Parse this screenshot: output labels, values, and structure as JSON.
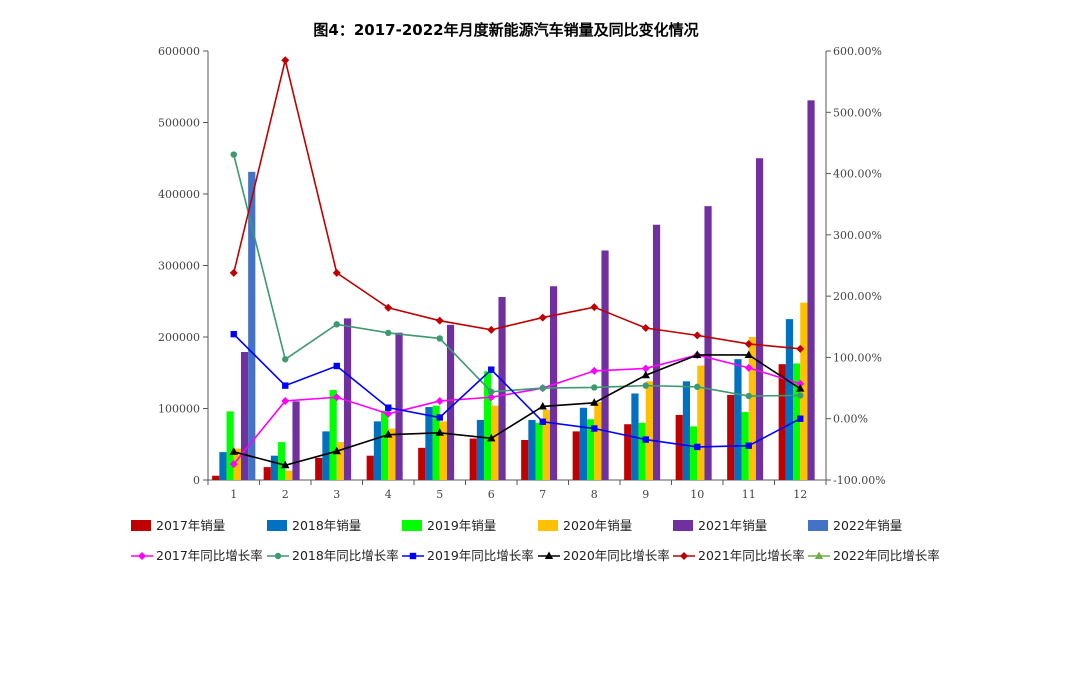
{
  "chart_data": {
    "type": "bar",
    "title": "图4：2017-2022年月度新能源汽车销量及同比变化情况",
    "categories": [
      "1",
      "2",
      "3",
      "4",
      "5",
      "6",
      "7",
      "8",
      "9",
      "10",
      "11",
      "12"
    ],
    "y_left": {
      "min": 0,
      "max": 600000,
      "ticks": [
        0,
        100000,
        200000,
        300000,
        400000,
        500000,
        600000
      ],
      "tick_labels": [
        "0",
        "100000",
        "200000",
        "300000",
        "400000",
        "500000",
        "600000"
      ]
    },
    "y_right": {
      "min": -100,
      "max": 600,
      "ticks": [
        -100,
        0,
        100,
        200,
        300,
        400,
        500,
        600
      ],
      "tick_labels": [
        "-100.00%",
        "0.00%",
        "100.00%",
        "200.00%",
        "300.00%",
        "400.00%",
        "500.00%",
        "600.00%"
      ]
    },
    "bar_series": [
      {
        "name": "2017年销量",
        "color": "#c00000",
        "values": [
          6000,
          18000,
          31000,
          34000,
          45000,
          58000,
          56000,
          68000,
          78000,
          91000,
          119000,
          162000
        ]
      },
      {
        "name": "2018年销量",
        "color": "#0070c0",
        "values": [
          39000,
          34000,
          68000,
          82000,
          102000,
          84000,
          84000,
          101000,
          121000,
          138000,
          169000,
          225000
        ]
      },
      {
        "name": "2019年销量",
        "color": "#00ff00",
        "values": [
          96000,
          53000,
          126000,
          97000,
          104000,
          152000,
          80000,
          85000,
          80000,
          75000,
          95000,
          163000
        ]
      },
      {
        "name": "2020年销量",
        "color": "#ffc000",
        "values": [
          44000,
          13000,
          53000,
          72000,
          82000,
          104000,
          98000,
          109000,
          138000,
          160000,
          200000,
          248000
        ]
      },
      {
        "name": "2021年销量",
        "color": "#7030a0",
        "values": [
          179000,
          110000,
          226000,
          206000,
          217000,
          256000,
          271000,
          321000,
          357000,
          383000,
          450000,
          531000
        ]
      },
      {
        "name": "2022年销量",
        "color": "#4472c4",
        "values": [
          431000,
          null,
          null,
          null,
          null,
          null,
          null,
          null,
          null,
          null,
          null,
          null
        ]
      }
    ],
    "line_series": [
      {
        "name": "2017年同比增长率",
        "color": "#ff00ff",
        "marker": "diamond",
        "values": [
          -74,
          29,
          35,
          8,
          29,
          35,
          50,
          78,
          82,
          104,
          83,
          57
        ]
      },
      {
        "name": "2018年同比增长率",
        "color": "#3d9970",
        "marker": "circle",
        "values": [
          431,
          97,
          154,
          140,
          131,
          44,
          50,
          51,
          54,
          52,
          37,
          38
        ]
      },
      {
        "name": "2019年同比增长率",
        "color": "#0000ff",
        "marker": "square",
        "values": [
          138,
          54,
          86,
          18,
          2,
          80,
          -5,
          -16,
          -34,
          -46,
          -44,
          0
        ]
      },
      {
        "name": "2020年同比增长率",
        "color": "#000000",
        "marker": "triangle",
        "values": [
          -54,
          -76,
          -53,
          -26,
          -23,
          -32,
          20,
          26,
          71,
          104,
          104,
          49
        ]
      },
      {
        "name": "2021年同比增长率",
        "color": "#c00000",
        "marker": "diamond",
        "values": [
          238,
          585,
          238,
          181,
          160,
          145,
          165,
          182,
          148,
          136,
          122,
          114
        ]
      },
      {
        "name": "2022年同比增长率",
        "color": "#70ad47",
        "marker": "triangle",
        "values": [
          null,
          null,
          null,
          null,
          null,
          null,
          null,
          null,
          null,
          null,
          null,
          null
        ]
      }
    ]
  }
}
